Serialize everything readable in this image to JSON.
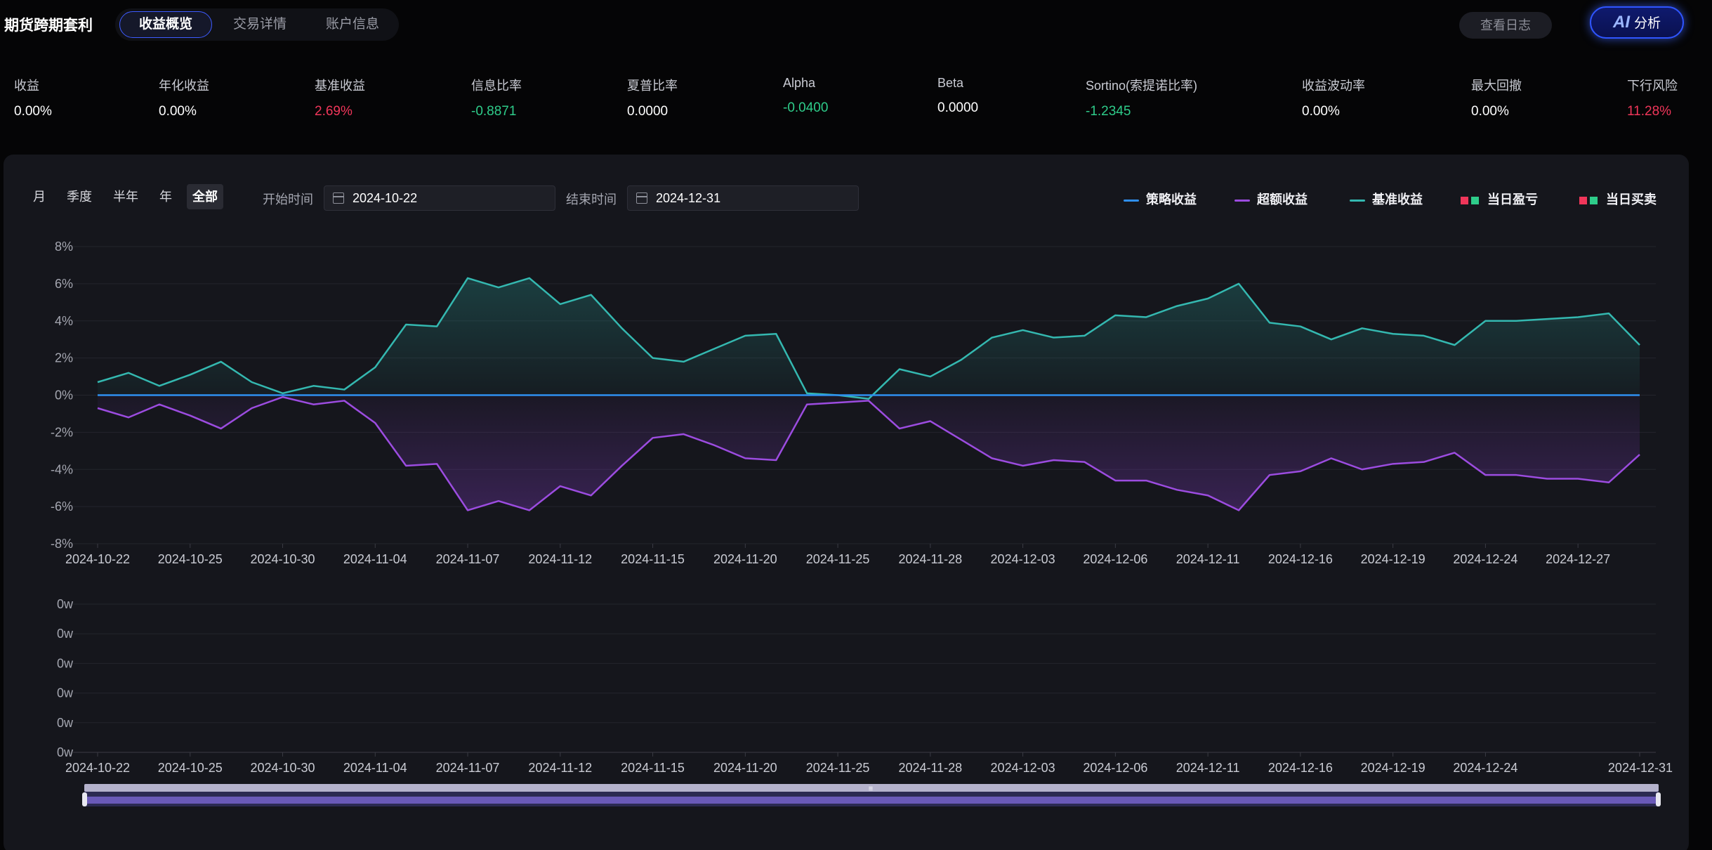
{
  "header": {
    "app_title": "期货跨期套利",
    "tabs": [
      {
        "label": "收益概览",
        "active": true
      },
      {
        "label": "交易详情",
        "active": false
      },
      {
        "label": "账户信息",
        "active": false
      }
    ],
    "log_button": "查看日志",
    "ai_button_glyph": "AI",
    "ai_button_label": "分析"
  },
  "metrics": [
    {
      "label": "收益",
      "value": "0.00%",
      "color": "#ffffff"
    },
    {
      "label": "年化收益",
      "value": "0.00%",
      "color": "#ffffff"
    },
    {
      "label": "基准收益",
      "value": "2.69%",
      "color": "#f0365a"
    },
    {
      "label": "信息比率",
      "value": "-0.8871",
      "color": "#2ecc8a"
    },
    {
      "label": "夏普比率",
      "value": "0.0000",
      "color": "#ffffff"
    },
    {
      "label": "Alpha",
      "value": "-0.0400",
      "color": "#2ecc8a"
    },
    {
      "label": "Beta",
      "value": "0.0000",
      "color": "#ffffff"
    },
    {
      "label": "Sortino(索提诺比率)",
      "value": "-1.2345",
      "color": "#2ecc8a"
    },
    {
      "label": "收益波动率",
      "value": "0.00%",
      "color": "#ffffff"
    },
    {
      "label": "最大回撤",
      "value": "0.00%",
      "color": "#ffffff"
    },
    {
      "label": "下行风险",
      "value": "11.28%",
      "color": "#f0365a"
    }
  ],
  "controls": {
    "periods": [
      {
        "label": "月",
        "active": false
      },
      {
        "label": "季度",
        "active": false
      },
      {
        "label": "半年",
        "active": false
      },
      {
        "label": "年",
        "active": false
      },
      {
        "label": "全部",
        "active": true
      }
    ],
    "start_label": "开始时间",
    "start_value": "2024-10-22",
    "end_label": "结束时间",
    "end_value": "2024-12-31"
  },
  "legend": [
    {
      "label": "策略收益",
      "type": "line",
      "color": "#2f8ff0"
    },
    {
      "label": "超额收益",
      "type": "line",
      "color": "#9c4ce0"
    },
    {
      "label": "基准收益",
      "type": "line",
      "color": "#34b8b0"
    },
    {
      "label": "当日盈亏",
      "type": "squares",
      "colors": [
        "#f0365a",
        "#2ecc8a"
      ]
    },
    {
      "label": "当日买卖",
      "type": "squares",
      "colors": [
        "#f0365a",
        "#2ecc8a"
      ]
    }
  ],
  "chart_data": [
    {
      "type": "line",
      "ylim": [
        -8,
        8
      ],
      "y_ticks": [
        "8%",
        "6%",
        "4%",
        "2%",
        "0%",
        "-2%",
        "-4%",
        "-6%",
        "-8%"
      ],
      "x_ticks": [
        "2024-10-22",
        "2024-10-25",
        "2024-10-30",
        "2024-11-04",
        "2024-11-07",
        "2024-11-12",
        "2024-11-15",
        "2024-11-20",
        "2024-11-25",
        "2024-11-28",
        "2024-12-03",
        "2024-12-06",
        "2024-12-11",
        "2024-12-16",
        "2024-12-19",
        "2024-12-24",
        "2024-12-27"
      ],
      "x": [
        "2024-10-22",
        "2024-10-23",
        "2024-10-24",
        "2024-10-25",
        "2024-10-28",
        "2024-10-29",
        "2024-10-30",
        "2024-10-31",
        "2024-11-01",
        "2024-11-04",
        "2024-11-05",
        "2024-11-06",
        "2024-11-07",
        "2024-11-08",
        "2024-11-11",
        "2024-11-12",
        "2024-11-13",
        "2024-11-14",
        "2024-11-15",
        "2024-11-18",
        "2024-11-19",
        "2024-11-20",
        "2024-11-21",
        "2024-11-22",
        "2024-11-25",
        "2024-11-26",
        "2024-11-27",
        "2024-11-28",
        "2024-11-29",
        "2024-12-02",
        "2024-12-03",
        "2024-12-04",
        "2024-12-05",
        "2024-12-06",
        "2024-12-09",
        "2024-12-10",
        "2024-12-11",
        "2024-12-12",
        "2024-12-13",
        "2024-12-16",
        "2024-12-17",
        "2024-12-18",
        "2024-12-19",
        "2024-12-20",
        "2024-12-23",
        "2024-12-24",
        "2024-12-25",
        "2024-12-26",
        "2024-12-27",
        "2024-12-30",
        "2024-12-31"
      ],
      "series": [
        {
          "name": "策略收益",
          "color": "#2f8ff0",
          "values": [
            0,
            0,
            0,
            0,
            0,
            0,
            0,
            0,
            0,
            0,
            0,
            0,
            0,
            0,
            0,
            0,
            0,
            0,
            0,
            0,
            0,
            0,
            0,
            0,
            0,
            0,
            0,
            0,
            0,
            0,
            0,
            0,
            0,
            0,
            0,
            0,
            0,
            0,
            0,
            0,
            0,
            0,
            0,
            0,
            0,
            0,
            0,
            0,
            0,
            0,
            0
          ]
        },
        {
          "name": "超额收益",
          "color": "#9c4ce0",
          "values": [
            -0.7,
            -1.2,
            -0.5,
            -1.1,
            -1.8,
            -0.7,
            -0.1,
            -0.5,
            -0.3,
            -1.5,
            -3.8,
            -3.7,
            -6.2,
            -5.7,
            -6.2,
            -4.9,
            -5.4,
            -3.8,
            -2.3,
            -2.1,
            -2.7,
            -3.4,
            -3.5,
            -0.5,
            -0.4,
            -0.3,
            -1.8,
            -1.4,
            -2.4,
            -3.4,
            -3.8,
            -3.5,
            -3.6,
            -4.6,
            -4.6,
            -5.1,
            -5.4,
            -6.2,
            -4.3,
            -4.1,
            -3.4,
            -4.0,
            -3.7,
            -3.6,
            -3.1,
            -4.3,
            -4.3,
            -4.5,
            -4.5,
            -4.7,
            -3.2
          ]
        },
        {
          "name": "基准收益",
          "color": "#34b8b0",
          "values": [
            0.7,
            1.2,
            0.5,
            1.1,
            1.8,
            0.7,
            0.1,
            0.5,
            0.3,
            1.5,
            3.8,
            3.7,
            6.3,
            5.8,
            6.3,
            4.9,
            5.4,
            3.6,
            2.0,
            1.8,
            2.5,
            3.2,
            3.3,
            0.1,
            0.0,
            -0.2,
            1.4,
            1.0,
            1.9,
            3.1,
            3.5,
            3.1,
            3.2,
            4.3,
            4.2,
            4.8,
            5.2,
            6.0,
            3.9,
            3.7,
            3.0,
            3.6,
            3.3,
            3.2,
            2.7,
            4.0,
            4.0,
            4.1,
            4.2,
            4.4,
            2.7
          ]
        }
      ]
    },
    {
      "type": "bar",
      "y_ticks": [
        "0w",
        "0w",
        "0w",
        "0w",
        "0w",
        "0w"
      ],
      "x_ticks": [
        "2024-10-22",
        "2024-10-25",
        "2024-10-30",
        "2024-11-04",
        "2024-11-07",
        "2024-11-12",
        "2024-11-15",
        "2024-11-20",
        "2024-11-25",
        "2024-11-28",
        "2024-12-03",
        "2024-12-06",
        "2024-12-11",
        "2024-12-16",
        "2024-12-19",
        "2024-12-24",
        "2024-12-31"
      ],
      "series": []
    }
  ],
  "slider": {
    "handle_glyph": "≡",
    "range_start": 0,
    "range_end": 100
  }
}
